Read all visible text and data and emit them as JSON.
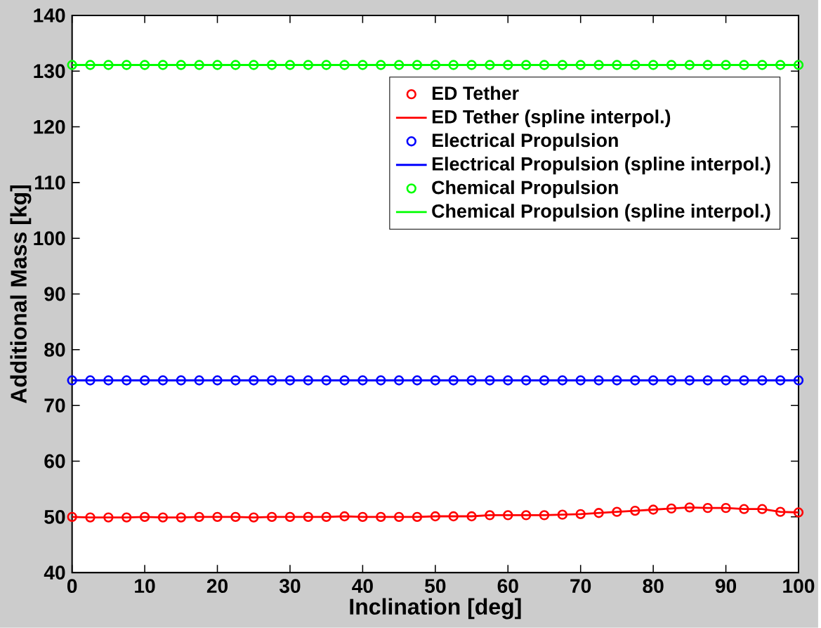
{
  "chart_data": {
    "type": "line",
    "xlabel": "Inclination [deg]",
    "ylabel": "Additional Mass [kg]",
    "x": [
      0,
      2.5,
      5,
      7.5,
      10,
      12.5,
      15,
      17.5,
      20,
      22.5,
      25,
      27.5,
      30,
      32.5,
      35,
      37.5,
      40,
      42.5,
      45,
      47.5,
      50,
      52.5,
      55,
      57.5,
      60,
      62.5,
      65,
      67.5,
      70,
      72.5,
      75,
      77.5,
      80,
      82.5,
      85,
      87.5,
      90,
      92.5,
      95,
      97.5,
      100
    ],
    "xlim": [
      0,
      100
    ],
    "xticks": [
      0,
      10,
      20,
      30,
      40,
      50,
      60,
      70,
      80,
      90,
      100
    ],
    "ylim": [
      40,
      140
    ],
    "yticks": [
      40,
      50,
      60,
      70,
      80,
      90,
      100,
      110,
      120,
      130,
      140
    ],
    "grid": false,
    "legend": "top right",
    "series": [
      {
        "name": "ED Tether",
        "type": "scatter",
        "marker": "circle",
        "color": "#ff0000",
        "values": [
          50.0,
          49.9,
          49.9,
          49.9,
          50.0,
          49.9,
          49.9,
          50.0,
          50.0,
          50.0,
          49.9,
          50.0,
          50.0,
          50.0,
          50.0,
          50.1,
          50.0,
          50.0,
          50.0,
          50.0,
          50.1,
          50.1,
          50.1,
          50.3,
          50.3,
          50.3,
          50.3,
          50.4,
          50.5,
          50.7,
          50.9,
          51.1,
          51.3,
          51.5,
          51.7,
          51.6,
          51.6,
          51.4,
          51.4,
          50.9,
          50.8
        ]
      },
      {
        "name": "ED Tether (spline interpol.)",
        "color": "#ff0000",
        "values": [
          50.0,
          49.9,
          49.9,
          49.9,
          50.0,
          49.9,
          49.9,
          50.0,
          50.0,
          50.0,
          49.9,
          50.0,
          50.0,
          50.0,
          50.0,
          50.1,
          50.0,
          50.0,
          50.0,
          50.0,
          50.1,
          50.1,
          50.1,
          50.3,
          50.3,
          50.3,
          50.3,
          50.4,
          50.5,
          50.7,
          50.9,
          51.1,
          51.3,
          51.5,
          51.7,
          51.6,
          51.6,
          51.4,
          51.4,
          50.9,
          50.8
        ]
      },
      {
        "name": "Electrical Propulsion",
        "type": "scatter",
        "marker": "circle",
        "color": "#0000ff",
        "values": [
          74.5,
          74.5,
          74.5,
          74.5,
          74.5,
          74.5,
          74.5,
          74.5,
          74.5,
          74.5,
          74.5,
          74.5,
          74.5,
          74.5,
          74.5,
          74.5,
          74.5,
          74.5,
          74.5,
          74.5,
          74.5,
          74.5,
          74.5,
          74.5,
          74.5,
          74.5,
          74.5,
          74.5,
          74.5,
          74.5,
          74.5,
          74.5,
          74.5,
          74.5,
          74.5,
          74.5,
          74.5,
          74.5,
          74.5,
          74.5,
          74.5
        ]
      },
      {
        "name": "Electrical Propulsion (spline interpol.)",
        "color": "#0000ff",
        "values": [
          74.5,
          74.5,
          74.5,
          74.5,
          74.5,
          74.5,
          74.5,
          74.5,
          74.5,
          74.5,
          74.5,
          74.5,
          74.5,
          74.5,
          74.5,
          74.5,
          74.5,
          74.5,
          74.5,
          74.5,
          74.5,
          74.5,
          74.5,
          74.5,
          74.5,
          74.5,
          74.5,
          74.5,
          74.5,
          74.5,
          74.5,
          74.5,
          74.5,
          74.5,
          74.5,
          74.5,
          74.5,
          74.5,
          74.5,
          74.5,
          74.5
        ]
      },
      {
        "name": "Chemical Propulsion",
        "type": "scatter",
        "marker": "circle",
        "color": "#00ff00",
        "values": [
          131.1,
          131.1,
          131.1,
          131.1,
          131.1,
          131.1,
          131.1,
          131.1,
          131.1,
          131.1,
          131.1,
          131.1,
          131.1,
          131.1,
          131.1,
          131.1,
          131.1,
          131.1,
          131.1,
          131.1,
          131.1,
          131.1,
          131.1,
          131.1,
          131.1,
          131.1,
          131.1,
          131.1,
          131.1,
          131.1,
          131.1,
          131.1,
          131.1,
          131.1,
          131.1,
          131.1,
          131.1,
          131.1,
          131.1,
          131.1,
          131.1
        ]
      },
      {
        "name": "Chemical Propulsion (spline interpol.)",
        "color": "#00ff00",
        "values": [
          131.1,
          131.1,
          131.1,
          131.1,
          131.1,
          131.1,
          131.1,
          131.1,
          131.1,
          131.1,
          131.1,
          131.1,
          131.1,
          131.1,
          131.1,
          131.1,
          131.1,
          131.1,
          131.1,
          131.1,
          131.1,
          131.1,
          131.1,
          131.1,
          131.1,
          131.1,
          131.1,
          131.1,
          131.1,
          131.1,
          131.1,
          131.1,
          131.1,
          131.1,
          131.1,
          131.1,
          131.1,
          131.1,
          131.1,
          131.1,
          131.1
        ]
      }
    ]
  }
}
